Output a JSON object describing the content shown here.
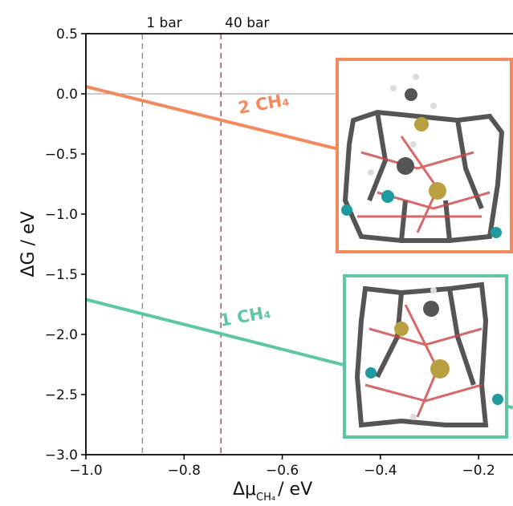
{
  "chart_data": {
    "type": "line",
    "ylabel": "ΔG / eV",
    "xlabel": {
      "main": "Δμ",
      "sub": "CH₄",
      "unit": "/ eV"
    },
    "x": [
      -1.0,
      -0.13
    ],
    "series": [
      {
        "name": "2 CH₄",
        "color": "#f28a5e",
        "values": [
          0.06,
          -0.82
        ]
      },
      {
        "name": "1 CH₄",
        "color": "#5cc7a0",
        "values": [
          -1.71,
          -2.61
        ]
      }
    ],
    "xlim": [
      -1.0,
      -0.13
    ],
    "ylim": [
      -3.0,
      0.5
    ],
    "xticks": [
      {
        "value": -1.0,
        "label": "−1.0"
      },
      {
        "value": -0.8,
        "label": "−0.8"
      },
      {
        "value": -0.6,
        "label": "−0.6"
      },
      {
        "value": -0.4,
        "label": "−0.4"
      },
      {
        "value": -0.2,
        "label": "−0.2"
      }
    ],
    "yticks": [
      0.5,
      {
        "value": 0.0,
        "label": "0.0"
      },
      {
        "value": -0.5,
        "label": "−0.5"
      },
      {
        "value": -1.0,
        "label": "−1.0"
      },
      {
        "value": -1.5,
        "label": "−1.5"
      },
      {
        "value": -2.0,
        "label": "−2.0"
      },
      {
        "value": -2.5,
        "label": "−2.5"
      },
      {
        "value": -3.0,
        "label": "−3.0"
      }
    ],
    "hline": 0,
    "vlines": [
      {
        "x": -0.885,
        "label": "1 bar",
        "color": "#888888"
      },
      {
        "x": -0.725,
        "label": "40 bar",
        "color": "#a3324f"
      }
    ]
  }
}
